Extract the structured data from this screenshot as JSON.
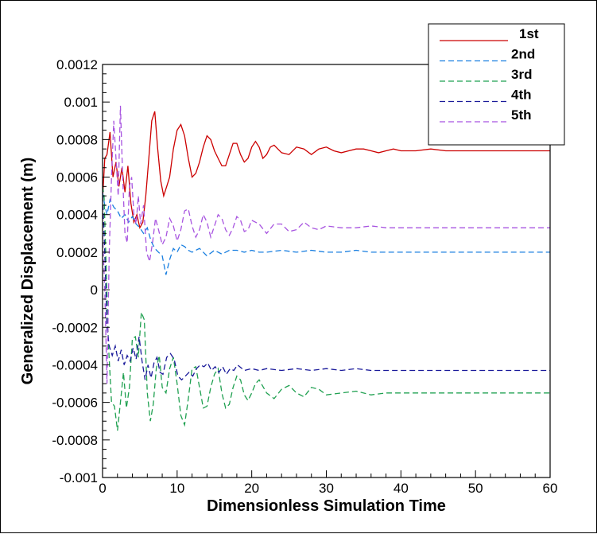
{
  "chart_data": {
    "type": "line",
    "title": "",
    "xlabel": "Dimensionless Simulation Time",
    "ylabel": "Generalized Displacement (m)",
    "xlim": [
      0,
      60
    ],
    "ylim": [
      -0.001,
      0.0012
    ],
    "x_ticks": [
      0,
      10,
      20,
      30,
      40,
      50,
      60
    ],
    "x_tick_labels": [
      "0",
      "10",
      "20",
      "30",
      "40",
      "50",
      "60"
    ],
    "y_ticks": [
      -0.001,
      -0.0008,
      -0.0006,
      -0.0004,
      -0.0002,
      0,
      0.0002,
      0.0004,
      0.0006,
      0.0008,
      0.001,
      0.0012
    ],
    "y_tick_labels": [
      "-0.001",
      "-0.0008",
      "-0.0006",
      "-0.0004",
      "-0.0002",
      "0",
      "0.0002",
      "0.0004",
      "0.0006",
      "0.0008",
      "0.001",
      "0.0012"
    ],
    "grid": false,
    "legend_position": "top-right",
    "series": [
      {
        "name": "1st",
        "color": "#cc0000",
        "style": "solid",
        "x": [
          0,
          0.3,
          0.6,
          1.0,
          1.4,
          1.8,
          2.2,
          2.6,
          3.0,
          3.4,
          3.8,
          4.2,
          4.6,
          5.0,
          5.4,
          5.8,
          6.2,
          6.6,
          7.0,
          7.4,
          7.8,
          8.2,
          8.6,
          9.0,
          9.5,
          10.0,
          10.5,
          11.0,
          11.5,
          12.0,
          12.5,
          13.0,
          13.5,
          14.0,
          14.5,
          15.0,
          15.5,
          16.0,
          16.5,
          17.0,
          17.5,
          18.0,
          18.5,
          19.0,
          19.5,
          20.0,
          20.5,
          21.0,
          21.5,
          22.0,
          22.5,
          23.0,
          24.0,
          25.0,
          26.0,
          27.0,
          28.0,
          29.0,
          30.0,
          31.0,
          32.0,
          33.0,
          34.0,
          35.0,
          36.0,
          37.0,
          38.0,
          39.0,
          40.0,
          42.0,
          44.0,
          46.0,
          48.0,
          50.0,
          52.0,
          54.0,
          56.0,
          58.0,
          60.0
        ],
        "y": [
          0.00048,
          0.0007,
          0.00072,
          0.00084,
          0.0006,
          0.00068,
          0.00055,
          0.00065,
          0.00052,
          0.00066,
          0.00046,
          0.00036,
          0.0004,
          0.00033,
          0.00036,
          0.0005,
          0.0007,
          0.0009,
          0.00095,
          0.00075,
          0.00058,
          0.0005,
          0.00055,
          0.0006,
          0.00075,
          0.00085,
          0.00088,
          0.00082,
          0.0007,
          0.0006,
          0.00062,
          0.00068,
          0.00076,
          0.00082,
          0.0008,
          0.00074,
          0.0007,
          0.00066,
          0.00066,
          0.00072,
          0.00078,
          0.00078,
          0.00072,
          0.00068,
          0.0007,
          0.00076,
          0.00079,
          0.00076,
          0.0007,
          0.00072,
          0.00076,
          0.00077,
          0.00073,
          0.00072,
          0.00076,
          0.00075,
          0.00072,
          0.00075,
          0.00076,
          0.00074,
          0.00073,
          0.00074,
          0.00075,
          0.00075,
          0.00074,
          0.00073,
          0.00074,
          0.00075,
          0.00074,
          0.00074,
          0.00075,
          0.00074,
          0.00074,
          0.00074,
          0.00074,
          0.00074,
          0.00074,
          0.00074,
          0.00074
        ]
      },
      {
        "name": "2nd",
        "color": "#1a7fe0",
        "style": "dashed",
        "x": [
          0,
          0.3,
          0.6,
          1.0,
          1.5,
          2.0,
          2.5,
          3.0,
          3.5,
          4.0,
          4.5,
          5.0,
          5.5,
          6.0,
          6.5,
          7.0,
          7.5,
          8.0,
          8.5,
          9.0,
          9.5,
          10.0,
          10.5,
          11.0,
          11.5,
          12.0,
          13.0,
          14.0,
          15.0,
          16.0,
          17.0,
          18.0,
          19.0,
          20.0,
          21.0,
          22.0,
          24.0,
          26.0,
          28.0,
          30.0,
          32.0,
          34.0,
          36.0,
          38.0,
          40.0,
          45.0,
          50.0,
          55.0,
          60.0
        ],
        "y": [
          0.00052,
          0.00045,
          0.0004,
          0.00048,
          0.00044,
          0.00042,
          0.00038,
          0.0004,
          0.00036,
          0.00039,
          0.00035,
          0.00033,
          0.0003,
          0.00033,
          0.00026,
          0.00022,
          0.0002,
          0.00018,
          8e-05,
          0.00016,
          0.00022,
          0.0002,
          0.00024,
          0.00023,
          0.00021,
          0.0002,
          0.00022,
          0.00018,
          0.00021,
          0.00019,
          0.00021,
          0.00021,
          0.0002,
          0.00021,
          0.0002,
          0.0002,
          0.00021,
          0.0002,
          0.00021,
          0.0002,
          0.0002,
          0.00021,
          0.0002,
          0.0002,
          0.0002,
          0.0002,
          0.0002,
          0.0002,
          0.0002
        ]
      },
      {
        "name": "3rd",
        "color": "#1fa050",
        "style": "dashed",
        "x": [
          0,
          0.2,
          0.5,
          0.8,
          1.2,
          1.6,
          2.0,
          2.4,
          2.8,
          3.2,
          3.6,
          4.0,
          4.4,
          4.8,
          5.2,
          5.6,
          6.0,
          6.4,
          6.8,
          7.2,
          7.6,
          8.0,
          8.5,
          9.0,
          9.5,
          10.0,
          10.5,
          11.0,
          11.5,
          12.0,
          12.5,
          13.0,
          13.5,
          14.0,
          14.5,
          15.0,
          15.5,
          16.0,
          16.5,
          17.0,
          17.5,
          18.0,
          18.5,
          19.0,
          19.5,
          20.0,
          20.5,
          21.0,
          22.0,
          23.0,
          24.0,
          25.0,
          26.0,
          27.0,
          28.0,
          29.0,
          30.0,
          32.0,
          34.0,
          36.0,
          38.0,
          40.0,
          45.0,
          50.0,
          55.0,
          60.0
        ],
        "y": [
          0.00055,
          0.0005,
          0.0001,
          -0.0003,
          -0.0006,
          -0.00062,
          -0.00075,
          -0.0006,
          -0.00044,
          -0.00063,
          -0.00052,
          -0.00026,
          -0.00025,
          -0.00036,
          -0.00012,
          -0.00016,
          -0.00055,
          -0.0007,
          -0.00061,
          -0.00042,
          -0.00035,
          -0.00052,
          -0.00055,
          -0.00042,
          -0.00036,
          -0.0005,
          -0.00067,
          -0.00072,
          -0.00058,
          -0.00042,
          -0.00041,
          -0.00052,
          -0.00063,
          -0.00062,
          -0.00052,
          -0.00045,
          -0.00042,
          -0.00055,
          -0.00063,
          -0.00061,
          -0.00052,
          -0.00046,
          -0.00048,
          -0.00056,
          -0.00059,
          -0.00055,
          -0.0005,
          -0.00048,
          -0.00055,
          -0.00058,
          -0.00053,
          -0.00051,
          -0.00055,
          -0.00057,
          -0.00052,
          -0.00053,
          -0.00056,
          -0.00055,
          -0.00054,
          -0.00056,
          -0.00055,
          -0.00055,
          -0.00055,
          -0.00055,
          -0.00055,
          -0.00055
        ]
      },
      {
        "name": "4th",
        "color": "#1a1a9a",
        "style": "dashed",
        "x": [
          0,
          0.3,
          0.6,
          0.9,
          1.3,
          1.7,
          2.1,
          2.5,
          2.9,
          3.3,
          3.7,
          4.1,
          4.5,
          4.9,
          5.3,
          5.7,
          6.1,
          6.5,
          6.9,
          7.3,
          7.7,
          8.1,
          8.6,
          9.1,
          9.6,
          10.1,
          10.6,
          11.1,
          11.6,
          12.1,
          12.6,
          13.1,
          13.6,
          14.1,
          14.6,
          15.1,
          15.6,
          16.1,
          16.6,
          17.1,
          17.6,
          18.1,
          19.0,
          20.0,
          21.0,
          22.0,
          24.0,
          26.0,
          28.0,
          30.0,
          32.0,
          34.0,
          36.0,
          40.0,
          45.0,
          50.0,
          55.0,
          60.0
        ],
        "y": [
          0.0005,
          0.0002,
          -0.0002,
          -0.0003,
          -0.00035,
          -0.0003,
          -0.00038,
          -0.00032,
          -0.0004,
          -0.00035,
          -0.00038,
          -0.00031,
          -0.00037,
          -0.00025,
          -0.00038,
          -0.00048,
          -0.0004,
          -0.00047,
          -0.00039,
          -0.00036,
          -0.00044,
          -0.00045,
          -0.00036,
          -0.00034,
          -0.00037,
          -0.00046,
          -0.00048,
          -0.00046,
          -0.00044,
          -0.00046,
          -0.00042,
          -0.0004,
          -0.00041,
          -0.00039,
          -0.00043,
          -0.00041,
          -0.00044,
          -0.00041,
          -0.00045,
          -0.00042,
          -0.00043,
          -0.0004,
          -0.00043,
          -0.00042,
          -0.00043,
          -0.00042,
          -0.00043,
          -0.00042,
          -0.00043,
          -0.00042,
          -0.00043,
          -0.00042,
          -0.00043,
          -0.00043,
          -0.00043,
          -0.00043,
          -0.00043,
          -0.00043
        ]
      },
      {
        "name": "5th",
        "color": "#a855e0",
        "style": "dashed",
        "x": [
          0,
          0.3,
          0.6,
          0.9,
          1.2,
          1.5,
          1.8,
          2.1,
          2.4,
          2.7,
          3.0,
          3.3,
          3.6,
          3.9,
          4.2,
          4.5,
          4.8,
          5.1,
          5.5,
          5.9,
          6.3,
          6.7,
          7.1,
          7.5,
          8.0,
          8.5,
          9.0,
          9.5,
          10.0,
          10.5,
          11.0,
          11.5,
          12.0,
          12.5,
          13.0,
          13.5,
          14.0,
          14.5,
          15.0,
          15.5,
          16.0,
          16.5,
          17.0,
          17.5,
          18.0,
          18.5,
          19.0,
          19.5,
          20.0,
          21.0,
          22.0,
          23.0,
          24.0,
          25.0,
          26.0,
          27.0,
          28.0,
          29.0,
          30.0,
          32.0,
          34.0,
          36.0,
          38.0,
          40.0,
          45.0,
          50.0,
          55.0,
          60.0
        ],
        "y": [
          0.0003,
          0.0,
          -0.0005,
          0.0002,
          0.0006,
          0.0009,
          0.0007,
          0.0005,
          0.00098,
          0.0006,
          0.0003,
          0.00025,
          0.00055,
          0.0006,
          0.0004,
          0.00035,
          0.0005,
          0.00035,
          0.00045,
          0.0002,
          0.00015,
          0.00025,
          0.00038,
          0.00032,
          0.00024,
          0.00028,
          0.00038,
          0.00034,
          0.00026,
          0.00032,
          0.00042,
          0.00043,
          0.00034,
          0.00028,
          0.00032,
          0.0004,
          0.00036,
          0.00028,
          0.00034,
          0.0004,
          0.00038,
          0.00032,
          0.00029,
          0.00033,
          0.00039,
          0.00037,
          0.00031,
          0.00032,
          0.00037,
          0.00035,
          0.0003,
          0.00035,
          0.00035,
          0.00031,
          0.00032,
          0.00036,
          0.00033,
          0.00032,
          0.00034,
          0.00033,
          0.00033,
          0.00034,
          0.00033,
          0.00033,
          0.00033,
          0.00033,
          0.00033,
          0.00033
        ]
      }
    ]
  }
}
